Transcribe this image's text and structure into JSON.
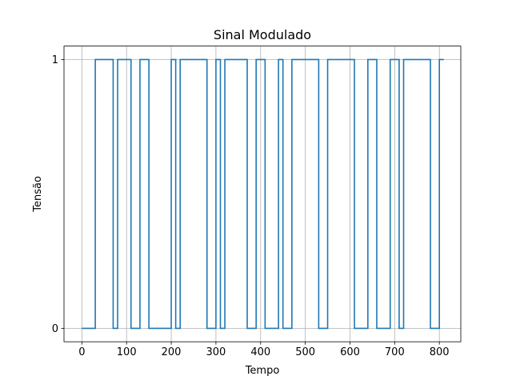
{
  "chart_data": {
    "type": "line",
    "title": "Sinal Modulado",
    "xlabel": "Tempo",
    "ylabel": "Tensão",
    "xlim": [
      -40,
      848
    ],
    "ylim": [
      -0.05,
      1.05
    ],
    "xticks": [
      0,
      100,
      200,
      300,
      400,
      500,
      600,
      700,
      800
    ],
    "xtick_labels": [
      "0",
      "100",
      "200",
      "300",
      "400",
      "500",
      "600",
      "700",
      "800"
    ],
    "yticks": [
      0,
      1
    ],
    "ytick_labels": [
      "0",
      "1"
    ],
    "grid": true,
    "drawstyle": "steps",
    "series": [
      {
        "color": "#1f77b4",
        "x": [
          0,
          30,
          70,
          80,
          110,
          130,
          150,
          200,
          210,
          220,
          280,
          300,
          310,
          320,
          370,
          390,
          410,
          440,
          450,
          470,
          530,
          550,
          610,
          640,
          660,
          690,
          710,
          720,
          780,
          800,
          810
        ],
        "y": [
          0,
          1,
          0,
          1,
          0,
          1,
          0,
          1,
          0,
          1,
          0,
          1,
          0,
          1,
          0,
          1,
          0,
          1,
          0,
          1,
          0,
          1,
          0,
          1,
          0,
          1,
          0,
          1,
          0,
          1,
          1
        ]
      }
    ]
  }
}
